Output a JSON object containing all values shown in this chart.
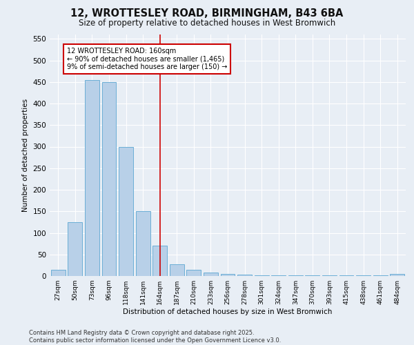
{
  "title1": "12, WROTTESLEY ROAD, BIRMINGHAM, B43 6BA",
  "title2": "Size of property relative to detached houses in West Bromwich",
  "xlabel": "Distribution of detached houses by size in West Bromwich",
  "ylabel": "Number of detached properties",
  "footer1": "Contains HM Land Registry data © Crown copyright and database right 2025.",
  "footer2": "Contains public sector information licensed under the Open Government Licence v3.0.",
  "bar_labels": [
    "27sqm",
    "50sqm",
    "73sqm",
    "96sqm",
    "118sqm",
    "141sqm",
    "164sqm",
    "187sqm",
    "210sqm",
    "233sqm",
    "256sqm",
    "278sqm",
    "301sqm",
    "324sqm",
    "347sqm",
    "370sqm",
    "393sqm",
    "415sqm",
    "438sqm",
    "461sqm",
    "484sqm"
  ],
  "bar_values": [
    15,
    125,
    455,
    450,
    300,
    150,
    70,
    28,
    15,
    8,
    5,
    3,
    2,
    1,
    1,
    1,
    1,
    1,
    1,
    1,
    5
  ],
  "bar_color": "#b8d0e8",
  "bar_edge_color": "#6aaed6",
  "vline_index": 6,
  "vline_color": "#cc0000",
  "annotation_text": "12 WROTTESLEY ROAD: 160sqm\n← 90% of detached houses are smaller (1,465)\n9% of semi-detached houses are larger (150) →",
  "annotation_box_facecolor": "#ffffff",
  "annotation_box_edgecolor": "#cc0000",
  "ylim": [
    0,
    560
  ],
  "yticks": [
    0,
    50,
    100,
    150,
    200,
    250,
    300,
    350,
    400,
    450,
    500,
    550
  ],
  "bg_color": "#e8eef5",
  "plot_bg_color": "#e8eef5"
}
